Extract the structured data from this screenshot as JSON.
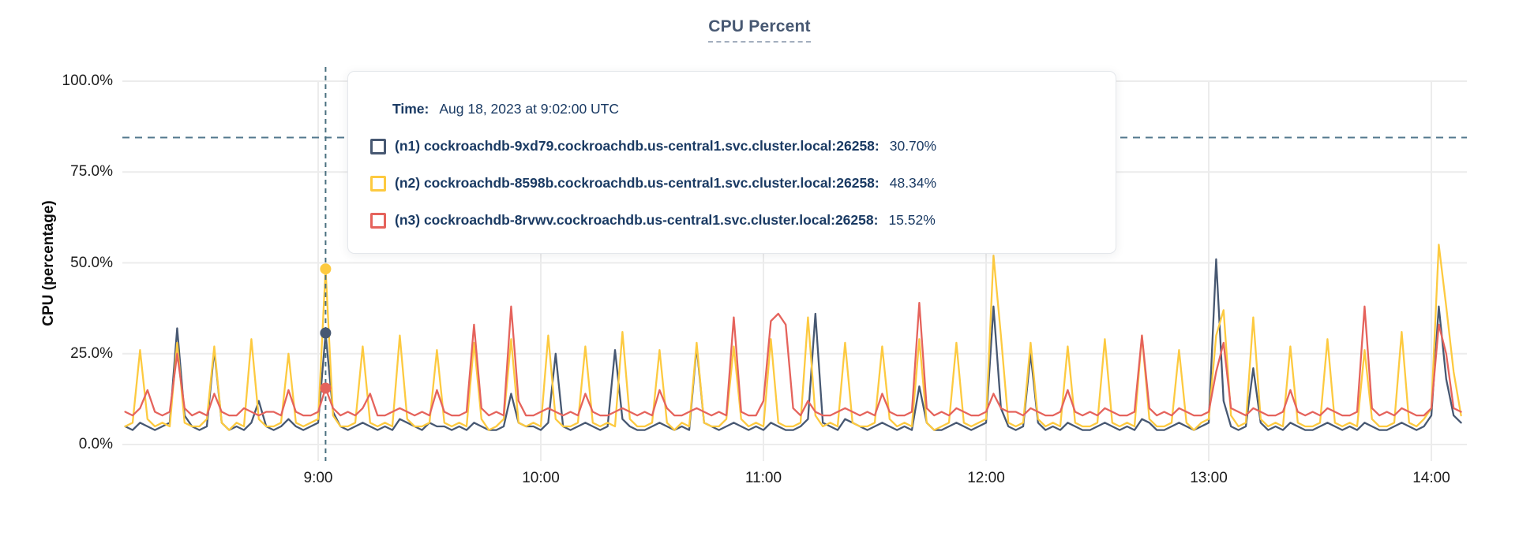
{
  "title": "CPU Percent",
  "y_axis": {
    "label": "CPU (percentage)",
    "ticks": [
      "100.0%",
      "75.0%",
      "50.0%",
      "25.0%",
      "0.0%"
    ]
  },
  "x_axis": {
    "ticks": [
      "9:00",
      "10:00",
      "11:00",
      "12:00",
      "13:00",
      "14:00"
    ]
  },
  "tooltip": {
    "time_label": "Time:",
    "time_value": "Aug 18, 2023 at 9:02:00 UTC",
    "rows": [
      {
        "label": "(n1) cockroachdb-9xd79.cockroachdb.us-central1.svc.cluster.local:26258:",
        "value": "30.70%",
        "color": "#475872"
      },
      {
        "label": "(n2) cockroachdb-8598b.cockroachdb.us-central1.svc.cluster.local:26258:",
        "value": "48.34%",
        "color": "#fdca40"
      },
      {
        "label": "(n3) cockroachdb-8rvwv.cockroachdb.us-central1.svc.cluster.local:26258:",
        "value": "15.52%",
        "color": "#e5635c"
      }
    ]
  },
  "colors": {
    "title": "#475872",
    "grid": "#ececec",
    "threshold_line": "#53788e",
    "crosshair_line": "#4a7080",
    "tooltip_text": "#1a3a63"
  },
  "chart_data": {
    "type": "line",
    "title": "CPU Percent",
    "xlabel": "",
    "ylabel": "CPU (percentage)",
    "ylim": [
      0,
      100
    ],
    "grid": true,
    "legend_position": "tooltip-overlay",
    "y_tick_values": [
      0,
      25,
      50,
      75,
      100
    ],
    "y_tick_labels": [
      "0.0%",
      "25.0%",
      "50.0%",
      "75.0%",
      "100.0%"
    ],
    "x_tick_minutes": [
      540,
      600,
      660,
      720,
      780,
      840
    ],
    "x_tick_labels": [
      "9:00",
      "10:00",
      "11:00",
      "12:00",
      "13:00",
      "14:00"
    ],
    "x_start_min": 488,
    "x_step_min": 2,
    "threshold_percent": 84.5,
    "crosshair": {
      "time_min": 542,
      "time_label": "9:02:00"
    },
    "series": [
      {
        "name": "(n1) cockroachdb-9xd79.cockroachdb.us-central1.svc.cluster.local:26258",
        "color": "#475872",
        "value_at_crosshair": 30.7,
        "values": [
          5,
          4,
          6,
          5,
          4,
          5,
          6,
          32,
          8,
          5,
          4,
          5,
          26,
          6,
          4,
          5,
          4,
          6,
          12,
          5,
          4,
          5,
          7,
          5,
          4,
          5,
          6,
          30.7,
          9,
          5,
          4,
          5,
          6,
          5,
          4,
          5,
          4,
          7,
          6,
          5,
          4,
          6,
          5,
          5,
          4,
          5,
          4,
          6,
          5,
          4,
          4,
          5,
          14,
          6,
          5,
          5,
          4,
          6,
          25,
          5,
          4,
          5,
          6,
          5,
          4,
          5,
          26,
          7,
          5,
          4,
          4,
          5,
          6,
          5,
          4,
          5,
          4,
          27,
          6,
          5,
          4,
          5,
          6,
          5,
          4,
          5,
          4,
          6,
          5,
          4,
          4,
          5,
          7,
          36,
          6,
          5,
          4,
          7,
          6,
          5,
          4,
          5,
          6,
          5,
          4,
          5,
          4,
          16,
          6,
          4,
          4,
          5,
          6,
          5,
          4,
          5,
          6,
          38,
          10,
          5,
          4,
          5,
          25,
          6,
          4,
          5,
          4,
          6,
          5,
          4,
          4,
          5,
          6,
          5,
          4,
          5,
          4,
          7,
          6,
          4,
          4,
          5,
          6,
          5,
          4,
          5,
          6,
          51,
          12,
          5,
          4,
          5,
          21,
          6,
          4,
          5,
          4,
          6,
          5,
          4,
          4,
          5,
          6,
          5,
          4,
          5,
          4,
          6,
          5,
          4,
          4,
          5,
          6,
          5,
          4,
          5,
          8,
          38,
          18,
          8,
          6
        ]
      },
      {
        "name": "(n2) cockroachdb-8598b.cockroachdb.us-central1.svc.cluster.local:26258",
        "color": "#fdca40",
        "value_at_crosshair": 48.34,
        "values": [
          5,
          6,
          26,
          7,
          5,
          6,
          5,
          28,
          6,
          5,
          5,
          7,
          27,
          6,
          4,
          6,
          5,
          29,
          7,
          5,
          5,
          6,
          25,
          6,
          5,
          6,
          7,
          48.34,
          8,
          5,
          5,
          6,
          27,
          6,
          5,
          6,
          5,
          30,
          7,
          5,
          5,
          6,
          26,
          6,
          5,
          6,
          5,
          28,
          7,
          4,
          5,
          7,
          29,
          6,
          5,
          6,
          5,
          30,
          7,
          5,
          5,
          6,
          27,
          6,
          5,
          6,
          5,
          31,
          7,
          5,
          5,
          6,
          26,
          6,
          4,
          6,
          5,
          28,
          6,
          5,
          5,
          7,
          27,
          7,
          5,
          6,
          5,
          29,
          6,
          5,
          5,
          6,
          35,
          8,
          5,
          6,
          5,
          28,
          6,
          5,
          5,
          6,
          27,
          7,
          5,
          6,
          5,
          29,
          6,
          4,
          5,
          6,
          28,
          6,
          5,
          6,
          7,
          52,
          30,
          6,
          5,
          6,
          28,
          7,
          5,
          6,
          5,
          27,
          6,
          5,
          5,
          6,
          29,
          6,
          5,
          6,
          5,
          30,
          7,
          5,
          5,
          6,
          26,
          6,
          4,
          6,
          7,
          30,
          37,
          8,
          5,
          6,
          35,
          7,
          5,
          6,
          5,
          27,
          6,
          5,
          5,
          6,
          29,
          6,
          5,
          6,
          5,
          26,
          7,
          5,
          5,
          6,
          31,
          6,
          5,
          7,
          10,
          55,
          38,
          20,
          8
        ]
      },
      {
        "name": "(n3) cockroachdb-8rvwv.cockroachdb.us-central1.svc.cluster.local:26258",
        "color": "#e5635c",
        "value_at_crosshair": 15.52,
        "values": [
          9,
          8,
          10,
          15,
          9,
          8,
          9,
          25,
          10,
          8,
          9,
          8,
          14,
          9,
          8,
          8,
          10,
          9,
          8,
          9,
          9,
          8,
          15,
          9,
          8,
          8,
          9,
          15.52,
          10,
          8,
          9,
          8,
          10,
          14,
          8,
          8,
          9,
          10,
          9,
          8,
          9,
          8,
          15,
          9,
          8,
          8,
          9,
          33,
          10,
          8,
          9,
          8,
          38,
          12,
          8,
          8,
          9,
          10,
          9,
          8,
          9,
          8,
          14,
          9,
          8,
          8,
          9,
          10,
          9,
          8,
          9,
          8,
          15,
          10,
          8,
          8,
          9,
          10,
          9,
          8,
          9,
          8,
          35,
          9,
          8,
          8,
          12,
          34,
          36,
          33,
          10,
          8,
          12,
          9,
          8,
          8,
          9,
          10,
          9,
          8,
          9,
          8,
          14,
          9,
          8,
          8,
          9,
          39,
          10,
          8,
          9,
          8,
          10,
          9,
          8,
          8,
          9,
          14,
          10,
          9,
          9,
          8,
          10,
          9,
          8,
          8,
          9,
          15,
          9,
          8,
          9,
          8,
          10,
          9,
          8,
          8,
          9,
          30,
          10,
          8,
          9,
          8,
          10,
          9,
          8,
          8,
          9,
          20,
          28,
          10,
          9,
          8,
          10,
          9,
          8,
          8,
          9,
          15,
          9,
          8,
          9,
          8,
          10,
          9,
          8,
          8,
          9,
          38,
          10,
          8,
          9,
          8,
          10,
          9,
          8,
          8,
          10,
          33,
          25,
          10,
          9
        ]
      }
    ]
  }
}
